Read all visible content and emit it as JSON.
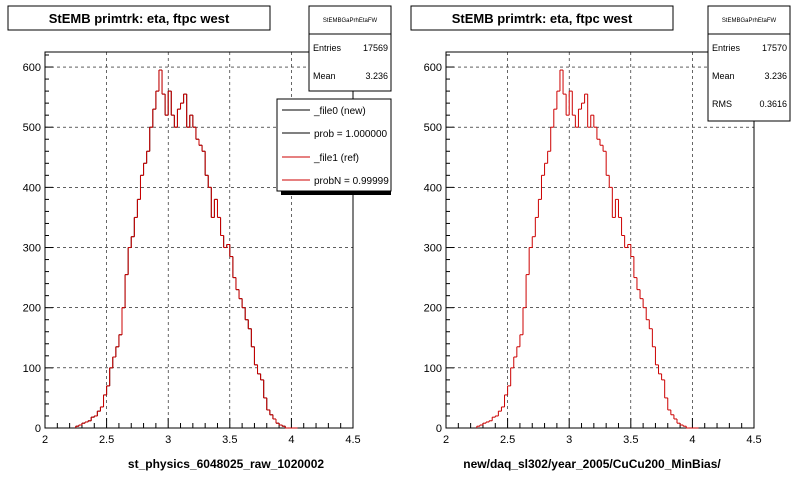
{
  "colors": {
    "new": "#000000",
    "ref": "#cc0000",
    "grid": "#000000"
  },
  "chart_data": [
    {
      "type": "histogram",
      "title": "StEMB primtrk: eta, ftpc west",
      "xlabel": "st_physics_6048025_raw_1020002",
      "xlim": [
        2,
        4.5
      ],
      "ylim": [
        0,
        625
      ],
      "xticks": [
        "2",
        "2.5",
        "3",
        "3.5",
        "4",
        "4.5"
      ],
      "yticks": [
        "0",
        "100",
        "200",
        "300",
        "400",
        "500",
        "600"
      ],
      "grid": true,
      "stats": {
        "name": "StEMBGaPrhEtaFW",
        "entries_label": "Entries",
        "entries": "17569",
        "mean_label": "Mean",
        "mean": "3.236"
      },
      "legend": [
        "_file0 (new)",
        "prob = 1.000000",
        "_file1 (ref)",
        "probN = 0.99999"
      ],
      "bin_start": 2.25,
      "bin_width": 0.025,
      "series": [
        {
          "name": "_file0 (new)",
          "values": [
            3,
            5,
            8,
            10,
            12,
            18,
            20,
            28,
            35,
            55,
            70,
            100,
            118,
            135,
            155,
            200,
            255,
            300,
            318,
            350,
            380,
            420,
            440,
            460,
            500,
            530,
            560,
            595,
            555,
            520,
            560,
            520,
            500,
            530,
            540,
            555,
            500,
            520,
            500,
            480,
            470,
            460,
            420,
            400,
            350,
            380,
            350,
            320,
            300,
            305,
            285,
            250,
            230,
            215,
            200,
            180,
            165,
            135,
            105,
            90,
            80,
            50,
            30,
            22,
            15,
            8,
            5,
            3,
            0,
            0,
            0,
            0
          ]
        },
        {
          "name": "_file1 (ref)",
          "values": [
            3,
            5,
            8,
            10,
            12,
            18,
            20,
            28,
            35,
            55,
            70,
            100,
            118,
            135,
            155,
            200,
            255,
            300,
            318,
            350,
            380,
            420,
            440,
            460,
            500,
            530,
            560,
            595,
            555,
            520,
            560,
            520,
            500,
            530,
            540,
            555,
            500,
            520,
            500,
            480,
            470,
            460,
            420,
            400,
            350,
            380,
            350,
            320,
            300,
            305,
            285,
            250,
            230,
            215,
            200,
            180,
            165,
            135,
            105,
            90,
            80,
            50,
            30,
            22,
            15,
            8,
            5,
            3,
            0,
            0,
            0,
            0
          ]
        }
      ]
    },
    {
      "type": "histogram",
      "title": "StEMB primtrk: eta, ftpc west",
      "xlabel": "new/daq_sl302/year_2005/CuCu200_MinBias/",
      "xlim": [
        2,
        4.5
      ],
      "ylim": [
        0,
        625
      ],
      "xticks": [
        "2",
        "2.5",
        "3",
        "3.5",
        "4",
        "4.5"
      ],
      "yticks": [
        "0",
        "100",
        "200",
        "300",
        "400",
        "500",
        "600"
      ],
      "grid": true,
      "stats": {
        "name": "StEMBGaPrhEtaFW",
        "entries_label": "Entries",
        "entries": "17570",
        "mean_label": "Mean",
        "mean": "3.236",
        "rms_label": "RMS",
        "rms": "0.3616"
      },
      "bin_start": 2.25,
      "bin_width": 0.025,
      "series": [
        {
          "name": "",
          "values": [
            3,
            5,
            8,
            10,
            12,
            18,
            20,
            28,
            35,
            55,
            70,
            100,
            118,
            135,
            155,
            200,
            255,
            300,
            318,
            350,
            380,
            420,
            440,
            460,
            500,
            530,
            560,
            595,
            555,
            520,
            560,
            520,
            500,
            530,
            540,
            555,
            500,
            520,
            500,
            480,
            470,
            460,
            420,
            400,
            350,
            380,
            350,
            320,
            300,
            305,
            285,
            250,
            230,
            215,
            200,
            180,
            165,
            135,
            105,
            90,
            80,
            50,
            30,
            22,
            15,
            8,
            5,
            3,
            0,
            0,
            0,
            0
          ]
        }
      ]
    }
  ]
}
